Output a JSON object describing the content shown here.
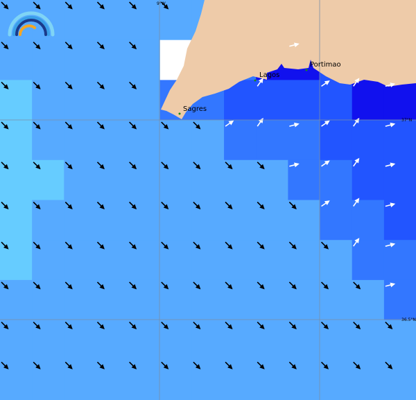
{
  "map": {
    "grid_labels": {
      "longitude": "9°W",
      "latitude_north": "37°N",
      "latitude_south": "36.5°N"
    },
    "places": [
      {
        "name": "Sagres"
      },
      {
        "name": "Lagos"
      },
      {
        "name": "Portimao"
      }
    ]
  }
}
